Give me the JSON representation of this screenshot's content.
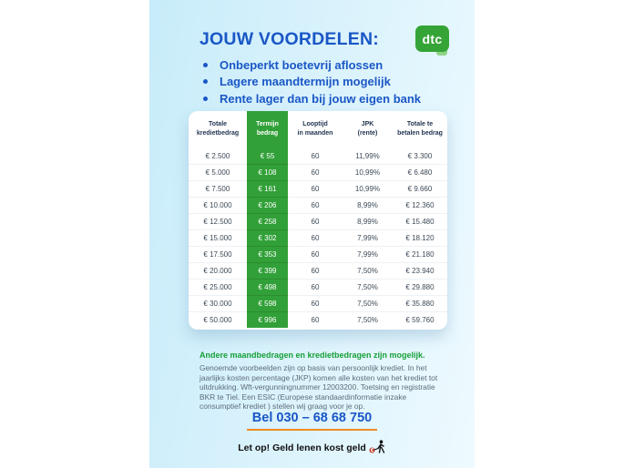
{
  "brand": {
    "logo_text": "dtc"
  },
  "header": {
    "title": "JOUW VOORDELEN:"
  },
  "benefits": [
    "Onbeperkt boetevrij aflossen",
    "Lagere maandtermijn mogelijk",
    "Rente lager dan bij jouw eigen bank"
  ],
  "table": {
    "columns": [
      "Totale\nkredietbedrag",
      "Termijn\nbedrag",
      "Looptijd\nin maanden",
      "JPK\n(rente)",
      "Totale te\nbetalen bedrag"
    ],
    "rows": [
      [
        "€ 2.500",
        "€ 55",
        "60",
        "11,99%",
        "€ 3.300"
      ],
      [
        "€ 5.000",
        "€ 108",
        "60",
        "10,99%",
        "€ 6.480"
      ],
      [
        "€ 7.500",
        "€ 161",
        "60",
        "10,99%",
        "€ 9.660"
      ],
      [
        "€ 10.000",
        "€ 206",
        "60",
        "8,99%",
        "€ 12.360"
      ],
      [
        "€ 12.500",
        "€ 258",
        "60",
        "8,99%",
        "€ 15.480"
      ],
      [
        "€ 15.000",
        "€ 302",
        "60",
        "7,99%",
        "€ 18.120"
      ],
      [
        "€ 17.500",
        "€ 353",
        "60",
        "7,99%",
        "€ 21.180"
      ],
      [
        "€ 20.000",
        "€ 399",
        "60",
        "7,50%",
        "€ 23.940"
      ],
      [
        "€ 25.000",
        "€ 498",
        "60",
        "7,50%",
        "€ 29.880"
      ],
      [
        "€ 30.000",
        "€ 598",
        "60",
        "7,50%",
        "€ 35.880"
      ],
      [
        "€ 50.000",
        "€ 996",
        "60",
        "7,50%",
        "€ 59.760"
      ]
    ]
  },
  "footer": {
    "note_title": "Andere maandbedragen en kredietbedragen zijn mogelijk.",
    "note_body": "Genoemde voorbeelden zijn op basis van persoonlijk krediet. In het\njaarlijks kosten percentage (JKP) komen alle kosten van het krediet tot\nuitdrukking. Wft-vergunningnummer 12003200. Toetsing en registratie\nBKR te Tiel. Een ESIC (Europese standaardinformatie inzake\nconsumptief krediet ) stellen wij graag voor je op.",
    "phone": "Bel 030 – 68 68 750",
    "warning": "Let op! Geld lenen kost geld"
  },
  "colors": {
    "brand_green": "#35a437",
    "table_green": "#31a038",
    "accent_blue": "#1a57c6",
    "underline_orange": "#f08a24",
    "note_green": "#17a038"
  }
}
